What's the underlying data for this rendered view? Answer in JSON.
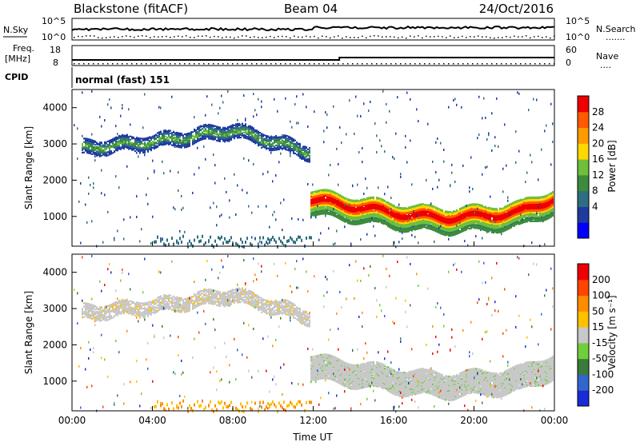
{
  "header": {
    "station": "Blackstone (fitACF)",
    "beam": "Beam 04",
    "date": "24/Oct/2016"
  },
  "noise_panel": {
    "left_label": "N.Sky",
    "left_ticks": [
      "10^5",
      "10^0"
    ],
    "right_ticks": [
      "10^5",
      "10^0"
    ],
    "right_label": "N.Search",
    "right_label_line": "......."
  },
  "freq_panel": {
    "left_label_1": "Freq.",
    "left_label_2": "[MHz]",
    "left_ticks": [
      "18",
      "8"
    ],
    "right_ticks": [
      "60",
      "0"
    ],
    "right_label": "Nave",
    "right_label_line": "....",
    "freq_mhz_before": 10.9,
    "freq_mhz_after": 11.4
  },
  "cpid": {
    "label": "CPID",
    "value": "normal (fast) 151"
  },
  "x_axis": {
    "label": "Time UT",
    "ticks": [
      "00:00",
      "04:00",
      "08:00",
      "12:00",
      "16:00",
      "20:00",
      "00:00"
    ],
    "range_hours": [
      0,
      24
    ]
  },
  "y_axis": {
    "label": "Slant Range [km]",
    "ticks": [
      "4000",
      "3000",
      "2000",
      "1000"
    ],
    "range_km": [
      180,
      4500
    ]
  },
  "colorbars": [
    {
      "label": "Power [dB]",
      "ticks": [
        "28",
        "24",
        "20",
        "16",
        "12",
        "8",
        "4"
      ],
      "colors": [
        "#0000ff",
        "#1f3aa0",
        "#2e6e80",
        "#3c8c3c",
        "#6fbf3a",
        "#ffd800",
        "#ff9a00",
        "#ff5a00",
        "#ee0000"
      ]
    },
    {
      "label": "Velocity [m s⁻¹]",
      "ticks": [
        "200",
        "100",
        "50",
        "15",
        "-15",
        "-50",
        "-100",
        "-200"
      ],
      "colors": [
        "#1a2ad8",
        "#3366cc",
        "#3b7a3b",
        "#6fcf3a",
        "#c8c8c8",
        "#ffc000",
        "#ff8c00",
        "#ff4500",
        "#ee0000"
      ]
    }
  ],
  "chart_data": [
    {
      "type": "heatmap",
      "title": "Blackstone (fitACF)  Beam 04  24/Oct/2016",
      "xlabel": "Time UT",
      "ylabel": "Slant Range [km]",
      "colorbar_label": "Power [dB]",
      "xlim_hours": [
        0,
        24
      ],
      "ylim_km": [
        180,
        4500
      ],
      "zlim_db": [
        0,
        32
      ],
      "features": [
        {
          "name": "far-range echo band",
          "x_hours": [
            0.4,
            11.8
          ],
          "range_km": [
            [
              2800,
              3000
            ],
            [
              3000,
              3200
            ],
            [
              3300,
              3500
            ],
            [
              2600,
              3000
            ]
          ],
          "power_db": 12
        },
        {
          "name": "main scatter band",
          "x_hours": [
            11.8,
            24
          ],
          "center_km": [
            1500,
            1350,
            1200,
            1050,
            1000,
            1050,
            1150,
            1550
          ],
          "power_db": 26
        }
      ]
    },
    {
      "type": "heatmap",
      "title": "Blackstone (fitACF)  Beam 04  24/Oct/2016",
      "xlabel": "Time UT",
      "ylabel": "Slant Range [km]",
      "colorbar_label": "Velocity [m s⁻¹]",
      "xlim_hours": [
        0,
        24
      ],
      "ylim_km": [
        180,
        4500
      ],
      "zlim_ms": [
        -250,
        250
      ],
      "features": [
        {
          "name": "ground scatter (low velocity)",
          "x_hours": [
            11.8,
            24
          ],
          "center_km": [
            1500,
            1350,
            1200,
            1050,
            1000,
            1050,
            1150,
            1550
          ],
          "velocity_ms": 0
        },
        {
          "name": "near-range negative velocity",
          "x_hours": [
            4,
            12
          ],
          "range_km": [
            180,
            500
          ],
          "velocity_ms": -60
        }
      ]
    }
  ]
}
